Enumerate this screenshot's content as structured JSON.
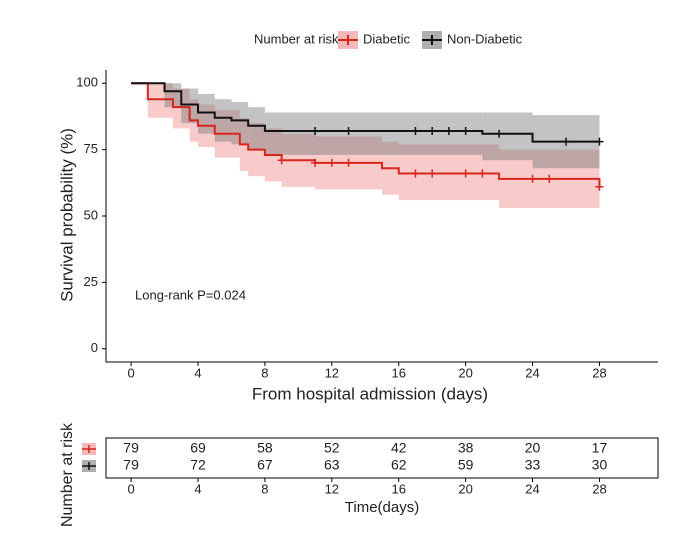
{
  "chart_data": {
    "type": "survival",
    "legend_title": "Number at risk",
    "xlabel": "From hospital admission (days)",
    "ylabel": "Survival probability (%)",
    "annotation": "Long-rank P=0.024",
    "xlim": [
      -1.5,
      31.5
    ],
    "ylim": [
      -5,
      105
    ],
    "xticks": [
      0,
      4,
      8,
      12,
      16,
      20,
      24,
      28
    ],
    "yticks": [
      0,
      25,
      50,
      75,
      100
    ],
    "series": [
      {
        "name": "Diabetic",
        "color": "#d7261e",
        "band_color": "#f08a8a",
        "x": [
          0,
          1,
          2.5,
          3.5,
          4,
          5,
          6.5,
          7,
          8,
          9,
          11,
          15,
          16,
          22,
          28
        ],
        "values": [
          100,
          94,
          91,
          86,
          84,
          81,
          77,
          75,
          73,
          71,
          70,
          68,
          66,
          64,
          61
        ],
        "lower": [
          100,
          87,
          83,
          78,
          76,
          72,
          67,
          65,
          63,
          61,
          60,
          58,
          56,
          53,
          53
        ],
        "upper": [
          100,
          100,
          98,
          94,
          92,
          90,
          87,
          85,
          83,
          81,
          80,
          78,
          77,
          75,
          72
        ],
        "censored": {
          "x": [
            9,
            11,
            12,
            13,
            17,
            18,
            20,
            21,
            24,
            25,
            28
          ],
          "values": [
            71,
            70,
            70,
            70,
            66,
            66,
            66,
            66,
            64,
            64,
            61
          ]
        }
      },
      {
        "name": "Non-Diabetic",
        "color": "#111111",
        "band_color": "#7a7a7a",
        "x": [
          0,
          2,
          3,
          4,
          5,
          6,
          7,
          8,
          21,
          24,
          28
        ],
        "values": [
          100,
          97,
          92,
          89,
          87,
          86,
          84,
          82,
          81,
          78,
          78
        ],
        "lower": [
          100,
          91,
          85,
          81,
          78,
          77,
          75,
          73,
          71,
          68,
          68
        ],
        "upper": [
          100,
          100,
          98,
          96,
          94,
          93,
          91,
          89,
          89,
          88,
          88
        ],
        "censored": {
          "x": [
            11,
            13,
            17,
            18,
            19,
            20,
            22,
            26,
            28
          ],
          "values": [
            82,
            82,
            82,
            82,
            82,
            82,
            81,
            78,
            78
          ]
        }
      }
    ],
    "risk_table": {
      "ylabel": "Number at risk",
      "xlabel": "Time(days)",
      "times": [
        0,
        4,
        8,
        12,
        16,
        20,
        24,
        28
      ],
      "rows": [
        [
          79,
          69,
          58,
          52,
          42,
          38,
          20,
          17
        ],
        [
          79,
          72,
          67,
          63,
          62,
          59,
          33,
          30
        ]
      ]
    }
  }
}
